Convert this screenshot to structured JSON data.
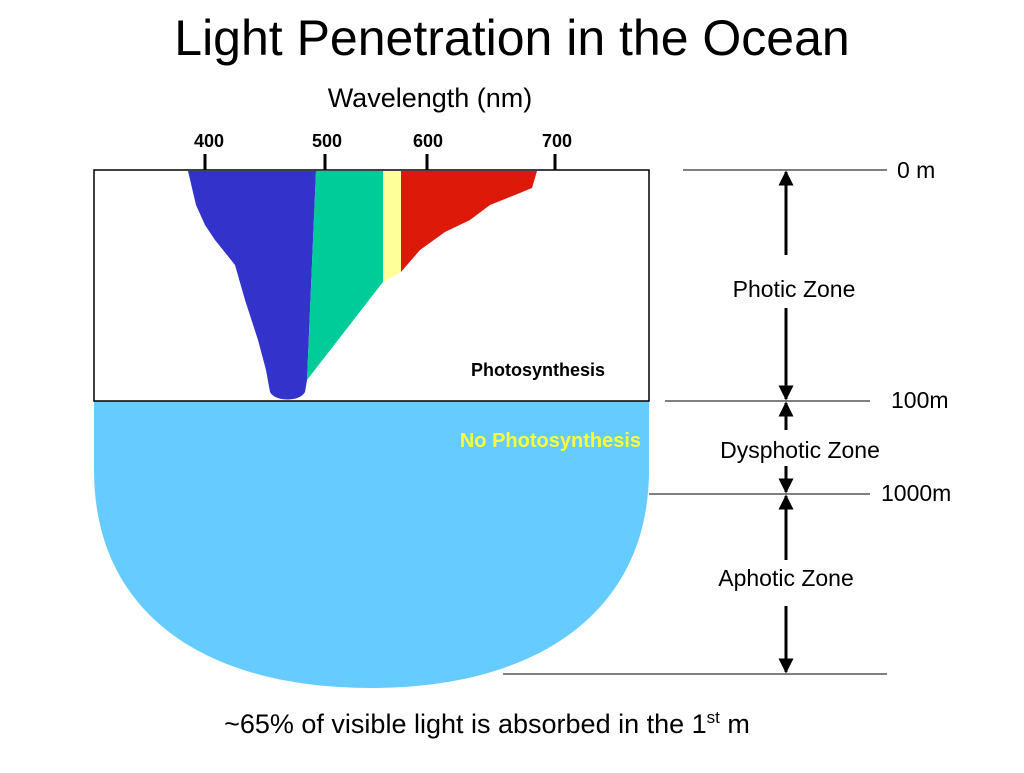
{
  "title": "Light Penetration in the Ocean",
  "axis_label": "Wavelength (nm)",
  "wavelength_ticks": [
    "400",
    "500",
    "600",
    "700"
  ],
  "depths": [
    "0 m",
    "100m",
    "1000m"
  ],
  "zones": [
    "Photic Zone",
    "Dysphotic Zone",
    "Aphotic Zone"
  ],
  "photosynthesis": "Photosynthesis",
  "no_photosynthesis": "No Photosynthesis",
  "footer": {
    "text": "~65% of visible light is absorbed in the 1",
    "superscript": "st",
    "unit": " m"
  }
}
